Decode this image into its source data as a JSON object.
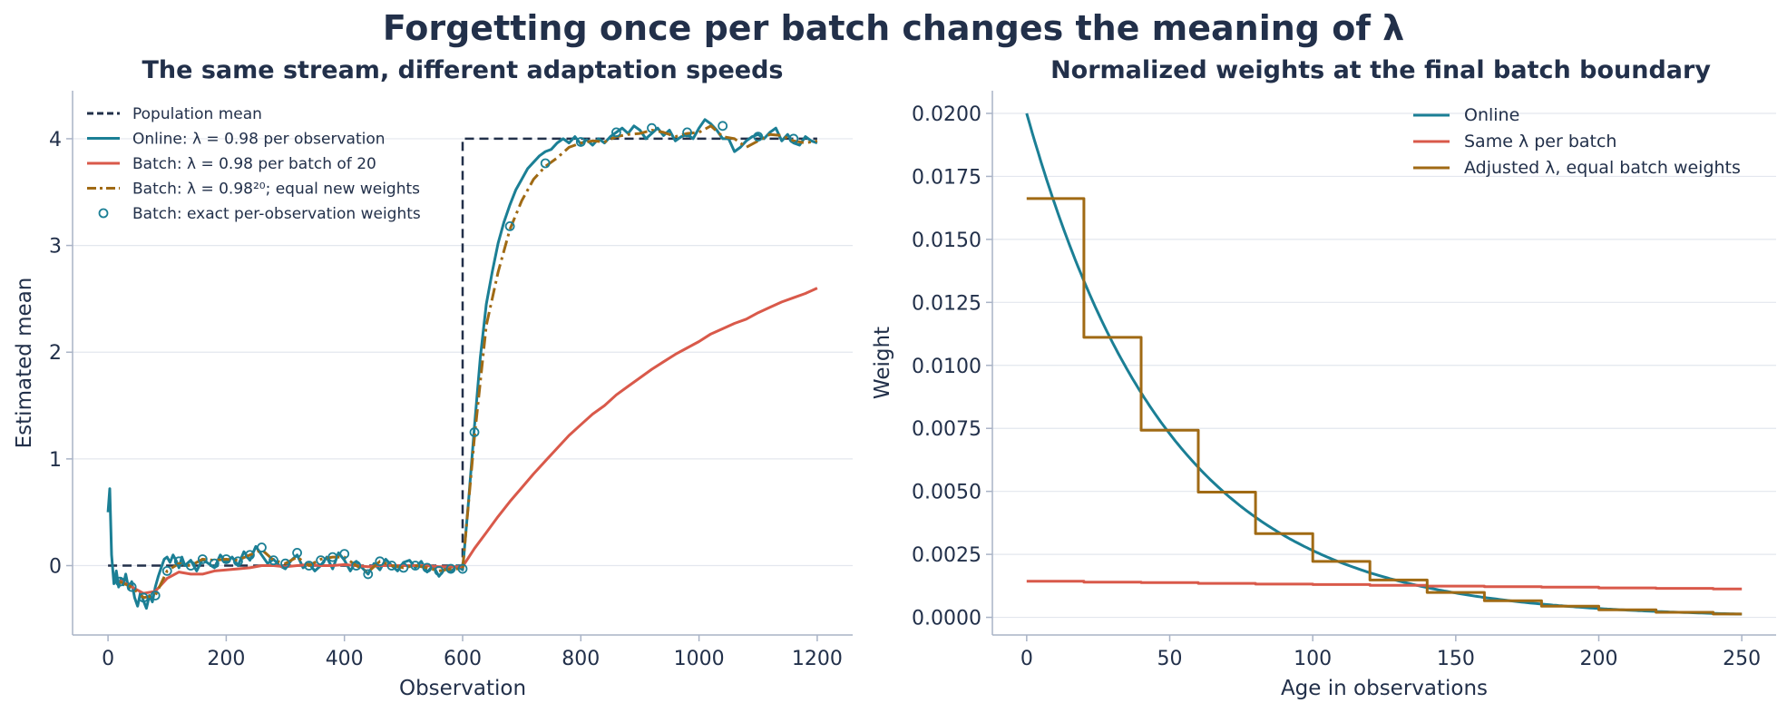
{
  "figure": {
    "title": "Forgetting once per batch changes the meaning of λ"
  },
  "colors": {
    "population_mean": "#22304a",
    "online": "#1b7f95",
    "batch_same": "#d9594a",
    "batch_adjusted": "#a06a14",
    "text": "#22304a"
  },
  "chart_data": [
    {
      "type": "line",
      "title": "The same stream, different adaptation speeds",
      "xlabel": "Observation",
      "ylabel": "Estimated mean",
      "xlim": [
        -60,
        1260
      ],
      "ylim": [
        -0.65,
        4.45
      ],
      "xticks": [
        0,
        200,
        400,
        600,
        800,
        1000,
        1200
      ],
      "yticks": [
        0,
        1,
        2,
        3,
        4
      ],
      "grid": "horizontal",
      "legend": "upper-left",
      "series": [
        {
          "name": "Population mean",
          "style": "dashed",
          "color": "#22304a",
          "x": [
            0,
            600,
            600,
            1200
          ],
          "y": [
            0,
            0,
            4,
            4
          ]
        },
        {
          "name": "Online: λ = 0.98 per observation",
          "style": "solid",
          "color": "#1b7f95",
          "x": [
            0,
            3,
            6,
            10,
            14,
            18,
            22,
            26,
            30,
            35,
            40,
            45,
            50,
            55,
            60,
            65,
            70,
            75,
            80,
            85,
            90,
            95,
            100,
            105,
            110,
            115,
            120,
            125,
            130,
            140,
            150,
            160,
            170,
            180,
            190,
            200,
            210,
            220,
            230,
            240,
            250,
            260,
            270,
            280,
            290,
            300,
            310,
            320,
            330,
            340,
            350,
            360,
            370,
            380,
            390,
            400,
            410,
            420,
            430,
            440,
            450,
            460,
            470,
            480,
            490,
            500,
            510,
            520,
            530,
            540,
            550,
            560,
            570,
            580,
            590,
            600,
            610,
            620,
            630,
            640,
            650,
            660,
            670,
            680,
            690,
            700,
            710,
            720,
            730,
            740,
            750,
            760,
            770,
            780,
            790,
            800,
            810,
            820,
            830,
            840,
            850,
            860,
            870,
            880,
            890,
            900,
            910,
            920,
            930,
            940,
            950,
            960,
            970,
            980,
            990,
            1000,
            1010,
            1020,
            1030,
            1040,
            1050,
            1060,
            1070,
            1080,
            1090,
            1100,
            1110,
            1120,
            1130,
            1140,
            1150,
            1160,
            1170,
            1180,
            1190,
            1200
          ],
          "y": [
            0.5,
            0.72,
            0.1,
            -0.17,
            -0.05,
            -0.2,
            -0.12,
            -0.18,
            -0.08,
            -0.22,
            -0.15,
            -0.3,
            -0.38,
            -0.25,
            -0.33,
            -0.4,
            -0.28,
            -0.34,
            -0.2,
            -0.1,
            -0.02,
            0.06,
            0.08,
            0.03,
            0.1,
            0.05,
            -0.02,
            0.08,
            0.0,
            0.05,
            -0.05,
            0.06,
            0.02,
            -0.02,
            0.1,
            0.03,
            0.08,
            0.0,
            0.13,
            0.05,
            0.18,
            0.1,
            0.02,
            0.06,
            0.0,
            -0.03,
            0.05,
            0.1,
            -0.02,
            0.02,
            -0.05,
            0.0,
            0.08,
            -0.03,
            0.12,
            0.05,
            -0.05,
            0.04,
            -0.02,
            -0.08,
            0.02,
            -0.04,
            0.06,
            0.0,
            -0.05,
            0.03,
            0.05,
            -0.02,
            0.04,
            -0.06,
            0.0,
            -0.1,
            -0.03,
            -0.06,
            0.0,
            -0.04,
            0.6,
            1.3,
            1.95,
            2.45,
            2.75,
            3.02,
            3.22,
            3.38,
            3.52,
            3.62,
            3.72,
            3.78,
            3.84,
            3.88,
            3.9,
            3.96,
            4.0,
            3.96,
            4.02,
            3.95,
            3.99,
            3.94,
            4.0,
            3.96,
            4.02,
            4.06,
            4.1,
            4.05,
            4.12,
            4.08,
            4.0,
            4.05,
            4.1,
            4.03,
            4.08,
            3.98,
            4.02,
            4.04,
            4.0,
            4.1,
            4.18,
            4.14,
            4.08,
            4.0,
            4.0,
            3.88,
            3.92,
            3.98,
            4.02,
            4.04,
            4.0,
            4.06,
            4.1,
            3.98,
            4.04,
            3.96,
            3.94,
            4.02,
            3.98,
            3.96
          ]
        },
        {
          "name": "Batch: λ = 0.98 per batch of 20",
          "style": "solid",
          "color": "#d9594a",
          "x": [
            20,
            40,
            60,
            80,
            100,
            120,
            140,
            160,
            180,
            200,
            220,
            240,
            260,
            280,
            300,
            320,
            340,
            360,
            380,
            400,
            420,
            440,
            460,
            480,
            500,
            520,
            540,
            560,
            580,
            600,
            620,
            640,
            660,
            680,
            700,
            720,
            740,
            760,
            780,
            800,
            820,
            840,
            860,
            880,
            900,
            920,
            940,
            960,
            980,
            1000,
            1020,
            1040,
            1060,
            1080,
            1100,
            1120,
            1140,
            1160,
            1180,
            1200
          ],
          "y": [
            -0.14,
            -0.2,
            -0.26,
            -0.24,
            -0.12,
            -0.06,
            -0.08,
            -0.08,
            -0.05,
            -0.04,
            -0.03,
            -0.02,
            0.0,
            0.0,
            -0.01,
            0.0,
            0.01,
            0.0,
            0.0,
            0.01,
            0.0,
            -0.01,
            0.0,
            0.0,
            0.0,
            0.0,
            0.0,
            -0.01,
            -0.01,
            -0.01,
            0.16,
            0.31,
            0.46,
            0.6,
            0.73,
            0.86,
            0.98,
            1.1,
            1.22,
            1.32,
            1.42,
            1.5,
            1.6,
            1.68,
            1.76,
            1.84,
            1.91,
            1.98,
            2.04,
            2.1,
            2.17,
            2.22,
            2.27,
            2.31,
            2.37,
            2.42,
            2.47,
            2.51,
            2.55,
            2.6
          ]
        },
        {
          "name": "Batch: λ = 0.98²⁰; equal new weights",
          "style": "dashdot",
          "color": "#a06a14",
          "x": [
            20,
            40,
            60,
            80,
            100,
            120,
            140,
            160,
            180,
            200,
            220,
            240,
            260,
            280,
            300,
            320,
            340,
            360,
            380,
            400,
            420,
            440,
            460,
            480,
            500,
            520,
            540,
            560,
            580,
            600,
            620,
            640,
            660,
            680,
            700,
            720,
            740,
            760,
            780,
            800,
            820,
            840,
            860,
            880,
            900,
            920,
            940,
            960,
            980,
            1000,
            1020,
            1040,
            1060,
            1080,
            1100,
            1120,
            1140,
            1160,
            1180,
            1200
          ],
          "y": [
            -0.15,
            -0.2,
            -0.3,
            -0.28,
            -0.05,
            0.02,
            0.0,
            0.06,
            0.05,
            0.06,
            0.05,
            0.1,
            0.15,
            0.05,
            0.02,
            0.08,
            0.0,
            0.06,
            0.08,
            0.08,
            0.0,
            -0.06,
            0.04,
            0.0,
            -0.02,
            0.0,
            -0.02,
            -0.05,
            -0.03,
            -0.03,
            1.2,
            2.25,
            2.75,
            3.15,
            3.42,
            3.62,
            3.74,
            3.82,
            3.92,
            3.96,
            3.98,
            3.97,
            4.02,
            4.04,
            4.05,
            4.08,
            4.06,
            4.02,
            4.05,
            4.06,
            4.12,
            4.02,
            4.0,
            3.92,
            3.98,
            4.04,
            4.03,
            3.98,
            3.96,
            3.98
          ]
        },
        {
          "name": "Batch: exact per-observation weights",
          "style": "markers",
          "color": "#1b7f95",
          "x": [
            20,
            40,
            60,
            80,
            100,
            120,
            140,
            160,
            180,
            200,
            220,
            240,
            260,
            280,
            300,
            320,
            340,
            360,
            380,
            400,
            420,
            440,
            460,
            480,
            500,
            520,
            540,
            560,
            580,
            600,
            620,
            680,
            740,
            800,
            860,
            920,
            980,
            1040,
            1100,
            1160
          ],
          "y": [
            -0.15,
            -0.2,
            -0.3,
            -0.28,
            -0.05,
            0.04,
            0.0,
            0.06,
            0.02,
            0.06,
            0.04,
            0.1,
            0.17,
            0.05,
            0.02,
            0.12,
            0.0,
            0.05,
            0.08,
            0.11,
            0.0,
            -0.08,
            0.04,
            0.0,
            -0.02,
            0.0,
            -0.02,
            -0.05,
            -0.03,
            -0.03,
            1.25,
            3.18,
            3.77,
            3.97,
            4.06,
            4.1,
            4.06,
            4.12,
            4.02,
            4.0
          ]
        }
      ]
    },
    {
      "type": "line",
      "title": "Normalized weights at the final batch boundary",
      "xlabel": "Age in observations",
      "ylabel": "Weight",
      "xlim": [
        -12,
        262
      ],
      "ylim": [
        -0.0007,
        0.0209
      ],
      "xticks": [
        0,
        50,
        100,
        150,
        200,
        250
      ],
      "yticks": [
        0.0,
        0.0025,
        0.005,
        0.0075,
        0.01,
        0.0125,
        0.015,
        0.0175,
        0.02
      ],
      "ytick_labels": [
        "0.0000",
        "0.0025",
        "0.0050",
        "0.0075",
        "0.0100",
        "0.0125",
        "0.0150",
        "0.0175",
        "0.0200"
      ],
      "grid": "horizontal",
      "legend": "upper-right",
      "series": [
        {
          "name": "Online",
          "style": "smooth",
          "color": "#1b7f95",
          "function": "0.02 * 0.98^age",
          "x_range": [
            0,
            250
          ]
        },
        {
          "name": "Same λ per batch",
          "style": "step",
          "color": "#d9594a",
          "batch_size": 20,
          "x_range": [
            0,
            250
          ],
          "values": [
            0.00143,
            0.0014,
            0.00138,
            0.00135,
            0.00132,
            0.0013,
            0.00127,
            0.00124,
            0.00122,
            0.0012,
            0.00117,
            0.00115,
            0.00113
          ]
        },
        {
          "name": "Adjusted λ, equal batch weights",
          "style": "step",
          "color": "#a06a14",
          "batch_size": 20,
          "x_range": [
            0,
            250
          ],
          "values": [
            0.01662,
            0.01111,
            0.00743,
            0.00497,
            0.00332,
            0.00222,
            0.00148,
            0.00099,
            0.00066,
            0.00044,
            0.0003,
            0.0002,
            0.00013
          ]
        }
      ]
    }
  ]
}
